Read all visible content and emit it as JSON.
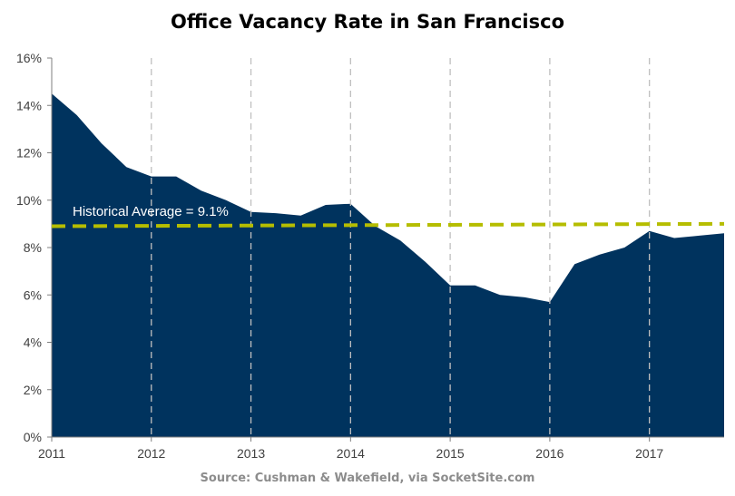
{
  "chart_data": {
    "type": "area",
    "title": "Office Vacancy Rate in San Francisco",
    "source": "Source: Cushman & Wakefield, via SocketSite.com",
    "xlabel": "",
    "ylabel": "",
    "x": [
      2011.0,
      2011.25,
      2011.5,
      2011.75,
      2012.0,
      2012.25,
      2012.5,
      2012.75,
      2013.0,
      2013.25,
      2013.5,
      2013.75,
      2014.0,
      2014.25,
      2014.5,
      2014.75,
      2015.0,
      2015.25,
      2015.5,
      2015.75,
      2016.0,
      2016.25,
      2016.5,
      2016.75,
      2017.0,
      2017.25,
      2017.5,
      2017.75
    ],
    "values": [
      14.5,
      13.6,
      12.4,
      11.4,
      11.0,
      11.0,
      10.4,
      10.0,
      9.5,
      9.45,
      9.35,
      9.8,
      9.85,
      8.9,
      8.3,
      7.4,
      6.4,
      6.4,
      6.0,
      5.9,
      5.7,
      7.3,
      7.7,
      8.0,
      8.7,
      8.4,
      8.5,
      8.6
    ],
    "xlim": [
      2011,
      2017.75
    ],
    "ylim": [
      0,
      16
    ],
    "x_ticks": [
      2011,
      2012,
      2013,
      2014,
      2015,
      2016,
      2017
    ],
    "x_tick_labels": [
      "2011",
      "2012",
      "2013",
      "2014",
      "2015",
      "2016",
      "2017"
    ],
    "y_ticks": [
      0,
      2,
      4,
      6,
      8,
      10,
      12,
      14,
      16
    ],
    "y_tick_labels": [
      "0%",
      "2%",
      "4%",
      "6%",
      "8%",
      "10%",
      "12%",
      "14%",
      "16%"
    ],
    "grid": "vertical dashed",
    "reference_line": {
      "label": "Historical Average = 9.1%",
      "start": 8.9,
      "end": 9.0
    },
    "colors": {
      "area": "#00335e",
      "reference_line": "#b5bd00",
      "grid": "#bfbfbf",
      "axis": "#7f7f7f"
    }
  }
}
